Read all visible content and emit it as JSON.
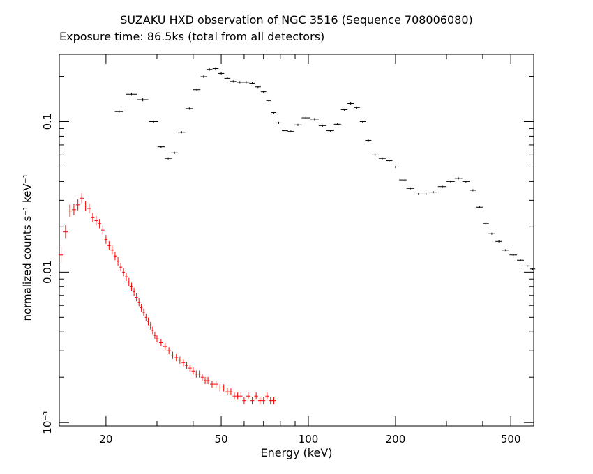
{
  "chart_data": {
    "type": "scatter",
    "title": "SUZAKU HXD observation of NGC 3516 (Sequence 708006080)",
    "subtitle": "Exposure time: 86.5ks (total from all detectors)",
    "xlabel": "Energy (keV)",
    "ylabel": "normalized counts s⁻¹ keV⁻¹",
    "xscale": "log",
    "yscale": "log",
    "xlim": [
      13.8,
      600
    ],
    "ylim": [
      0.00095,
      0.28
    ],
    "x_ticks": [
      {
        "value": 20,
        "label": "20"
      },
      {
        "value": 50,
        "label": "50"
      },
      {
        "value": 100,
        "label": "100"
      },
      {
        "value": 200,
        "label": "200"
      },
      {
        "value": 500,
        "label": "500"
      }
    ],
    "y_ticks": [
      {
        "value": 0.001,
        "label": "10⁻³"
      },
      {
        "value": 0.01,
        "label": "0.01"
      },
      {
        "value": 0.1,
        "label": "0.1"
      }
    ],
    "grid": false,
    "series": [
      {
        "color": "#000000",
        "points": [
          [
            22.2,
            0.117,
            1.2
          ],
          [
            24.5,
            0.152,
            1.3
          ],
          [
            26.8,
            0.14,
            1.4
          ],
          [
            29.2,
            0.1,
            1.0
          ],
          [
            31.0,
            0.068,
            0.8
          ],
          [
            32.8,
            0.057,
            0.7
          ],
          [
            34.5,
            0.062,
            0.8
          ],
          [
            36.5,
            0.085,
            0.9
          ],
          [
            38.8,
            0.122,
            1.0
          ],
          [
            41.2,
            0.163,
            1.2
          ],
          [
            43.5,
            0.199,
            1.2
          ],
          [
            45.5,
            0.222,
            1.2
          ],
          [
            47.8,
            0.225,
            1.2
          ],
          [
            50.0,
            0.209,
            1.0
          ],
          [
            52.5,
            0.194,
            1.0
          ],
          [
            55.0,
            0.185,
            1.0
          ],
          [
            58.0,
            0.183,
            1.0
          ],
          [
            61.0,
            0.183,
            1.0
          ],
          [
            64.0,
            0.18,
            1.0
          ],
          [
            67.0,
            0.17,
            0.8
          ],
          [
            70.0,
            0.158,
            0.8
          ],
          [
            73.0,
            0.138,
            0.8
          ],
          [
            76.0,
            0.115,
            0.8
          ],
          [
            79.0,
            0.098,
            0.8
          ],
          [
            83.0,
            0.087,
            0.8
          ],
          [
            87.0,
            0.086,
            0.8
          ],
          [
            92.0,
            0.095,
            0.8
          ],
          [
            98.0,
            0.106,
            0.8
          ],
          [
            105.0,
            0.104,
            0.8
          ],
          [
            112.0,
            0.094,
            0.8
          ],
          [
            119.0,
            0.087,
            0.8
          ],
          [
            126.0,
            0.096,
            0.8
          ],
          [
            133.0,
            0.12,
            0.8
          ],
          [
            140.0,
            0.132,
            0.8
          ],
          [
            147.0,
            0.124,
            0.8
          ],
          [
            154.0,
            0.1,
            0.8
          ],
          [
            161.0,
            0.075,
            0.8
          ],
          [
            170.0,
            0.06,
            0.8
          ],
          [
            180.0,
            0.057,
            0.8
          ],
          [
            190.0,
            0.055,
            0.8
          ],
          [
            200.0,
            0.05,
            0.8
          ],
          [
            212.0,
            0.041,
            0.8
          ],
          [
            225.0,
            0.036,
            0.8
          ],
          [
            240.0,
            0.033,
            0.8
          ],
          [
            255.0,
            0.033,
            0.8
          ],
          [
            270.0,
            0.034,
            0.8
          ],
          [
            290.0,
            0.037,
            0.8
          ],
          [
            310.0,
            0.04,
            0.8
          ],
          [
            330.0,
            0.042,
            0.8
          ],
          [
            350.0,
            0.04,
            0.8
          ],
          [
            370.0,
            0.035,
            0.8
          ],
          [
            390.0,
            0.027,
            0.8
          ],
          [
            410.0,
            0.021,
            0.8
          ],
          [
            430.0,
            0.018,
            0.8
          ],
          [
            455.0,
            0.016,
            0.8
          ],
          [
            480.0,
            0.014,
            0.8
          ],
          [
            510.0,
            0.013,
            0.8
          ],
          [
            540.0,
            0.012,
            0.8
          ],
          [
            570.0,
            0.011,
            0.8
          ],
          [
            595.0,
            0.0105,
            0.8
          ]
        ]
      },
      {
        "color": "#ff0000",
        "points": [
          [
            14.0,
            0.013,
            3.5
          ],
          [
            14.5,
            0.0185,
            3.0
          ],
          [
            15.0,
            0.0255,
            2.8
          ],
          [
            15.5,
            0.026,
            2.5
          ],
          [
            16.0,
            0.028,
            2.5
          ],
          [
            16.5,
            0.031,
            2.2
          ],
          [
            17.0,
            0.0275,
            2.2
          ],
          [
            17.5,
            0.0265,
            2.2
          ],
          [
            18.0,
            0.023,
            2.1
          ],
          [
            18.5,
            0.022,
            2.1
          ],
          [
            19.0,
            0.021,
            2.1
          ],
          [
            19.5,
            0.019,
            2.0
          ],
          [
            20.0,
            0.0165,
            2.0
          ],
          [
            20.5,
            0.015,
            2.0
          ],
          [
            21.0,
            0.014,
            2.0
          ],
          [
            21.5,
            0.0128,
            1.9
          ],
          [
            22.0,
            0.0118,
            1.9
          ],
          [
            22.5,
            0.0108,
            1.9
          ],
          [
            23.0,
            0.01,
            1.9
          ],
          [
            23.5,
            0.0093,
            1.8
          ],
          [
            24.0,
            0.0086,
            1.8
          ],
          [
            24.5,
            0.008,
            1.8
          ],
          [
            25.0,
            0.0074,
            1.8
          ],
          [
            25.5,
            0.0068,
            1.8
          ],
          [
            26.0,
            0.0063,
            1.8
          ],
          [
            26.5,
            0.0058,
            1.7
          ],
          [
            27.0,
            0.0054,
            1.7
          ],
          [
            27.5,
            0.005,
            1.7
          ],
          [
            28.0,
            0.0047,
            1.7
          ],
          [
            28.5,
            0.0044,
            1.7
          ],
          [
            29.0,
            0.0041,
            1.7
          ],
          [
            29.5,
            0.0038,
            1.6
          ],
          [
            30.0,
            0.0036,
            1.6
          ],
          [
            31.0,
            0.0034,
            1.6
          ],
          [
            32.0,
            0.0032,
            1.6
          ],
          [
            33.0,
            0.003,
            1.6
          ],
          [
            34.0,
            0.0028,
            1.6
          ],
          [
            35.0,
            0.0027,
            1.6
          ],
          [
            36.0,
            0.0026,
            1.6
          ],
          [
            37.0,
            0.0025,
            1.6
          ],
          [
            38.0,
            0.0024,
            1.6
          ],
          [
            39.0,
            0.0023,
            1.6
          ],
          [
            40.0,
            0.0022,
            1.6
          ],
          [
            41.0,
            0.0021,
            1.6
          ],
          [
            42.0,
            0.0021,
            1.6
          ],
          [
            43.0,
            0.002,
            1.6
          ],
          [
            44.0,
            0.0019,
            1.6
          ],
          [
            45.0,
            0.0019,
            1.6
          ],
          [
            46.5,
            0.0018,
            1.6
          ],
          [
            48.0,
            0.0018,
            1.6
          ],
          [
            49.5,
            0.0017,
            1.6
          ],
          [
            51.0,
            0.0017,
            1.6
          ],
          [
            52.5,
            0.0016,
            1.6
          ],
          [
            54.0,
            0.0016,
            1.6
          ],
          [
            55.5,
            0.0015,
            1.6
          ],
          [
            57.0,
            0.0015,
            1.6
          ],
          [
            58.5,
            0.0015,
            1.6
          ],
          [
            60.0,
            0.0014,
            1.6
          ],
          [
            62.0,
            0.0015,
            1.6
          ],
          [
            64.0,
            0.0014,
            1.6
          ],
          [
            66.0,
            0.0015,
            1.6
          ],
          [
            68.0,
            0.0014,
            1.6
          ],
          [
            70.0,
            0.0014,
            1.6
          ],
          [
            72.0,
            0.0015,
            1.6
          ],
          [
            74.0,
            0.0014,
            1.6
          ],
          [
            76.0,
            0.0014,
            1.6
          ]
        ]
      }
    ]
  }
}
